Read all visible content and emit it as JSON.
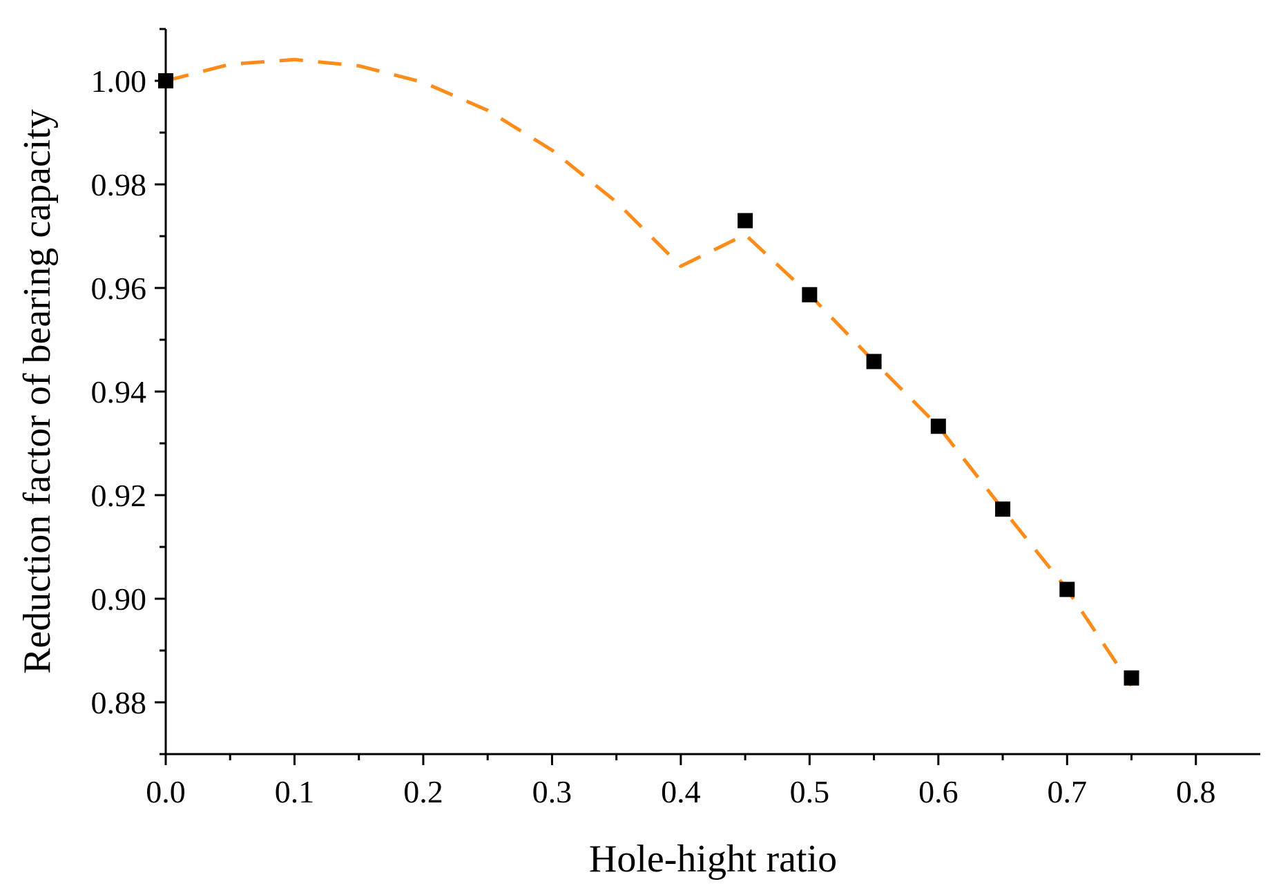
{
  "chart_data": {
    "type": "scatter",
    "title": "",
    "xlabel": "Hole-hight ratio",
    "ylabel": "Reduction factor of bearing capacity",
    "xlim": [
      0.0,
      0.85
    ],
    "ylim": [
      0.87,
      1.01
    ],
    "x_ticks": [
      0.0,
      0.1,
      0.2,
      0.3,
      0.4,
      0.5,
      0.6,
      0.7,
      0.8
    ],
    "x_tick_labels": [
      "0.0",
      "0.1",
      "0.2",
      "0.3",
      "0.4",
      "0.5",
      "0.6",
      "0.7",
      "0.8"
    ],
    "y_ticks": [
      0.88,
      0.9,
      0.92,
      0.94,
      0.96,
      0.98,
      1.0
    ],
    "y_tick_labels": [
      "0.88",
      "0.90",
      "0.92",
      "0.94",
      "0.96",
      "0.98",
      "1.00"
    ],
    "grid": false,
    "series": [
      {
        "name": "Data points",
        "kind": "scatter",
        "marker": "square",
        "color": "#000000",
        "x": [
          0.0,
          0.45,
          0.5,
          0.55,
          0.6,
          0.65,
          0.7,
          0.75
        ],
        "y": [
          1.0,
          0.973,
          0.9587,
          0.9458,
          0.9333,
          0.9173,
          0.9018,
          0.8847
        ]
      },
      {
        "name": "Fit curve",
        "kind": "line",
        "style": "dashed",
        "color": "#FF8C1A",
        "x": [
          0.0,
          0.05,
          0.1,
          0.15,
          0.2,
          0.25,
          0.3,
          0.35,
          0.4,
          0.45,
          0.5,
          0.55,
          0.6,
          0.65,
          0.7,
          0.75
        ],
        "y": [
          1.0,
          1.0032,
          1.0041,
          1.0029,
          0.9997,
          0.9943,
          0.9866,
          0.9766,
          0.9642,
          0.9703,
          0.9587,
          0.9458,
          0.9333,
          0.9173,
          0.9018,
          0.8832
        ]
      }
    ]
  }
}
